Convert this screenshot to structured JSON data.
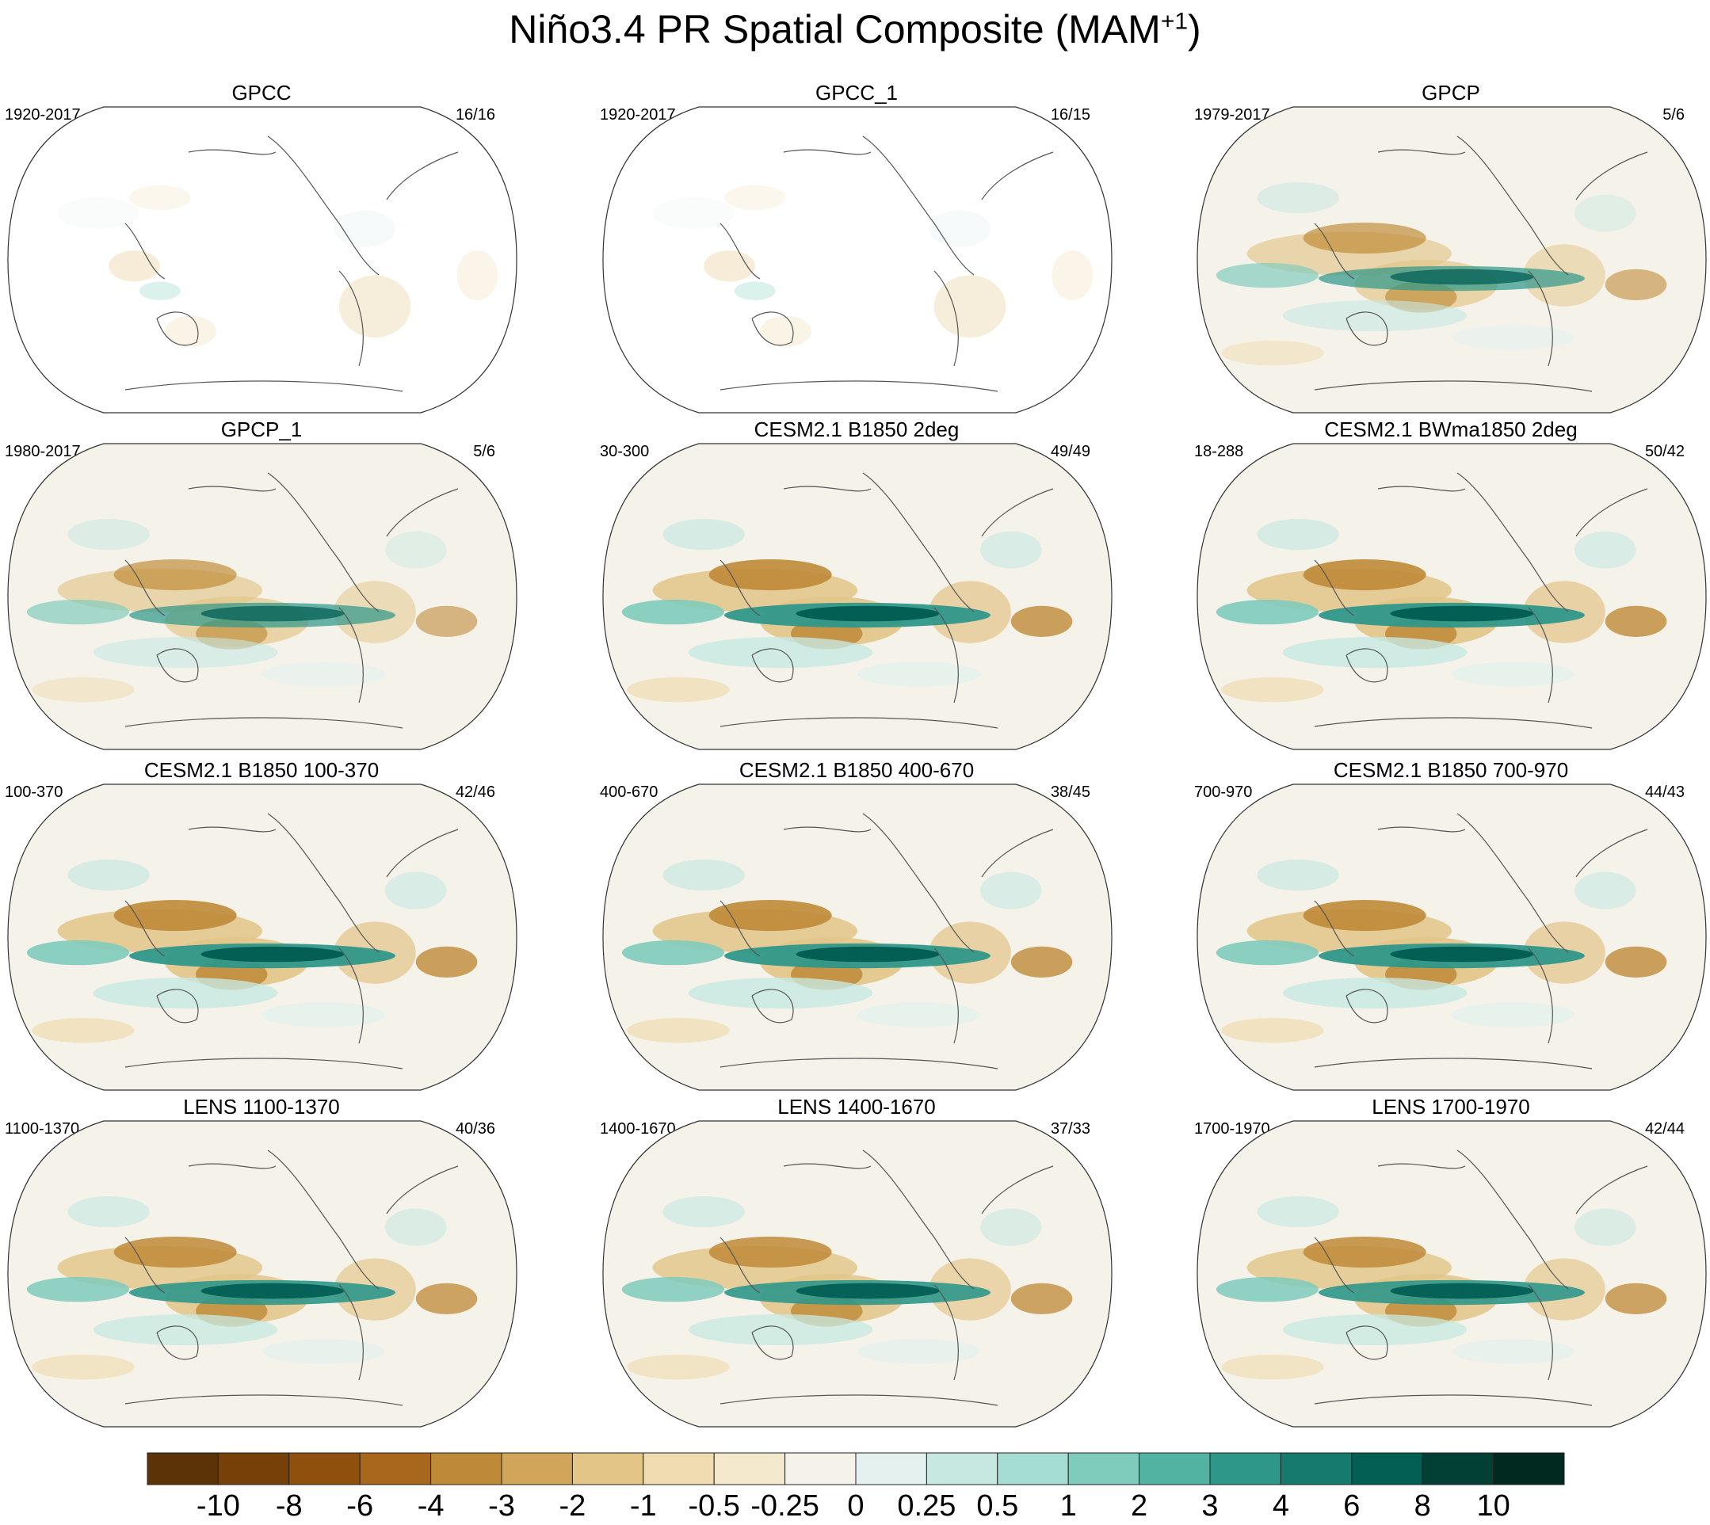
{
  "figure": {
    "title_main": "Niño3.4 PR Spatial Composite (MAM",
    "title_sup": "+1",
    "title_end": ")"
  },
  "panels": [
    {
      "title": "GPCC",
      "period": "1920-2017",
      "count": "16/16",
      "ocean": false,
      "intensity": 0.4
    },
    {
      "title": "GPCC_1",
      "period": "1920-2017",
      "count": "16/15",
      "ocean": false,
      "intensity": 0.4
    },
    {
      "title": "GPCP",
      "period": "1979-2017",
      "count": "5/6",
      "ocean": true,
      "intensity": 0.75
    },
    {
      "title": "GPCP_1",
      "period": "1980-2017",
      "count": "5/6",
      "ocean": true,
      "intensity": 0.75
    },
    {
      "title": "CESM2.1 B1850 2deg",
      "period": "30-300",
      "count": "49/49",
      "ocean": true,
      "intensity": 1.0
    },
    {
      "title": "CESM2.1 BWma1850 2deg",
      "period": "18-288",
      "count": "50/42",
      "ocean": true,
      "intensity": 1.0
    },
    {
      "title": "CESM2.1 B1850 100-370",
      "period": "100-370",
      "count": "42/46",
      "ocean": true,
      "intensity": 1.0
    },
    {
      "title": "CESM2.1 B1850 400-670",
      "period": "400-670",
      "count": "38/45",
      "ocean": true,
      "intensity": 1.0
    },
    {
      "title": "CESM2.1 B1850 700-970",
      "period": "700-970",
      "count": "44/43",
      "ocean": true,
      "intensity": 1.0
    },
    {
      "title": "LENS 1100-1370",
      "period": "1100-1370",
      "count": "40/36",
      "ocean": true,
      "intensity": 0.95
    },
    {
      "title": "LENS 1400-1670",
      "period": "1400-1670",
      "count": "37/33",
      "ocean": true,
      "intensity": 0.95
    },
    {
      "title": "LENS 1700-1970",
      "period": "1700-1970",
      "count": "42/44",
      "ocean": true,
      "intensity": 0.95
    }
  ],
  "colorbar": {
    "labels": [
      "-10",
      "-8",
      "-6",
      "-4",
      "-3",
      "-2",
      "-1",
      "-0.5",
      "-0.25",
      "0",
      "0.25",
      "0.5",
      "1",
      "2",
      "3",
      "4",
      "6",
      "8",
      "10"
    ],
    "colors": [
      "#5c3307",
      "#774009",
      "#8f500e",
      "#a8671d",
      "#bf8a37",
      "#d1a55a",
      "#e2c587",
      "#efdcb0",
      "#f5e9cd",
      "#f5f2ea",
      "#e5f1ee",
      "#c7e8e1",
      "#a5ddd2",
      "#7fcbbc",
      "#52b3a2",
      "#2f978a",
      "#167a6f",
      "#035f54",
      "#023f35",
      "#01291f"
    ]
  }
}
